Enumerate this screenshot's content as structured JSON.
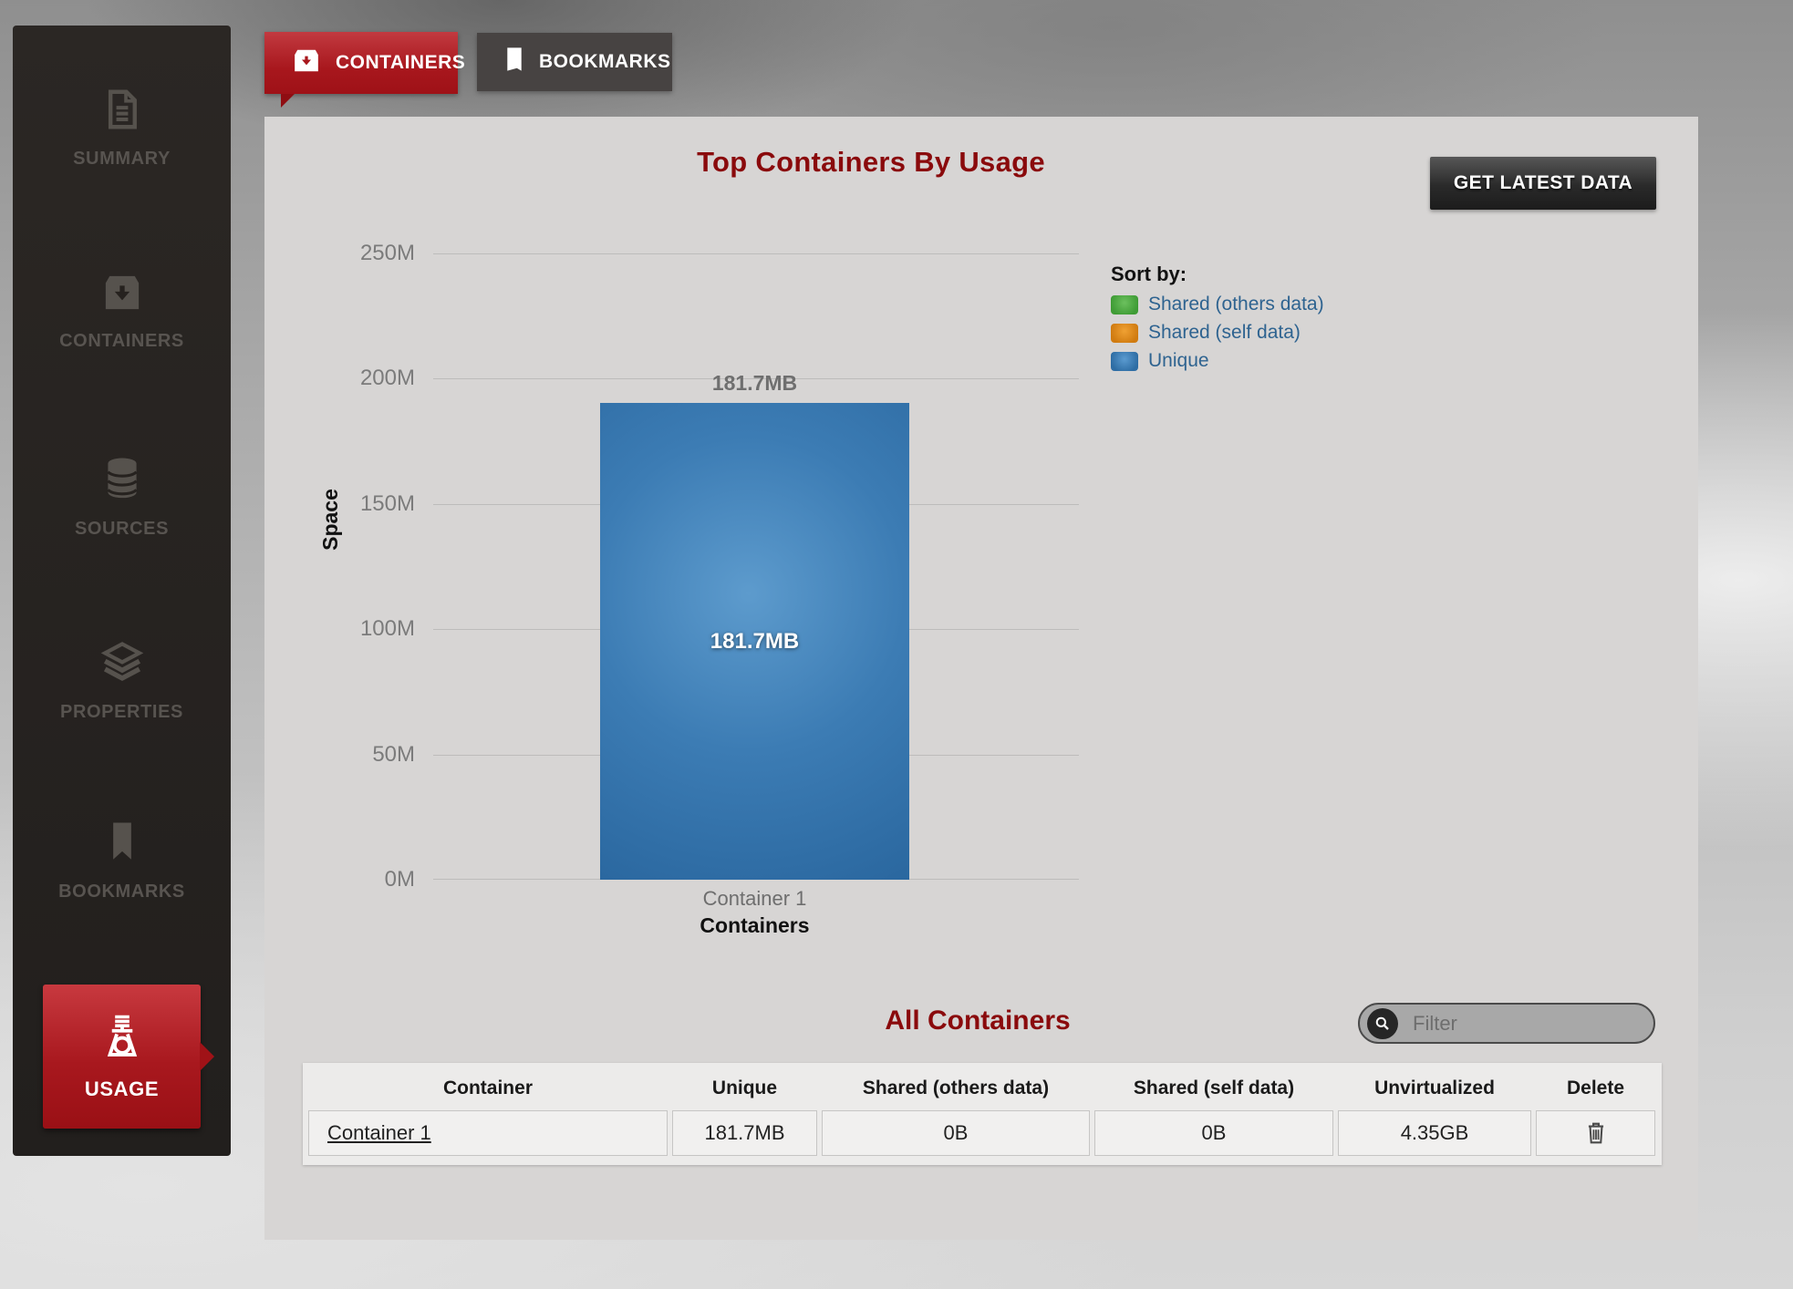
{
  "sidebar": {
    "items": [
      {
        "label": "SUMMARY",
        "icon": "document-icon",
        "active": false
      },
      {
        "label": "CONTAINERS",
        "icon": "archive-icon",
        "active": false
      },
      {
        "label": "SOURCES",
        "icon": "database-icon",
        "active": false
      },
      {
        "label": "PROPERTIES",
        "icon": "layers-icon",
        "active": false
      },
      {
        "label": "BOOKMARKS",
        "icon": "bookmark-icon",
        "active": false
      },
      {
        "label": "USAGE",
        "icon": "scale-icon",
        "active": true
      }
    ]
  },
  "top_tabs": {
    "tabs": [
      {
        "label": "CONTAINERS",
        "icon": "container-box-icon",
        "active": true
      },
      {
        "label": "BOOKMARKS",
        "icon": "bookmark-icon",
        "active": false
      }
    ]
  },
  "panel": {
    "title": "Top Containers By Usage",
    "get_latest_data_button": "GET LATEST DATA"
  },
  "chart_data": {
    "type": "bar",
    "title": "Top Containers By Usage",
    "xlabel": "Containers",
    "ylabel": "Space",
    "categories": [
      "Container 1"
    ],
    "series": [
      {
        "name": "Unique",
        "color": "#3a7ab5",
        "values": [
          181.7
        ],
        "unit": "MB",
        "labels": [
          "181.7MB"
        ]
      },
      {
        "name": "Shared (others data)",
        "color": "#3f9c35",
        "values": [
          0
        ]
      },
      {
        "name": "Shared (self data)",
        "color": "#dd8018",
        "values": [
          0
        ]
      }
    ],
    "bar_value_plotted_m": 190.5,
    "ylim": [
      0,
      250
    ],
    "ytick_labels_top_to_bottom": [
      "250M",
      "200M",
      "150M",
      "100M",
      "50M",
      "0M"
    ],
    "grid": true,
    "legend": {
      "title": "Sort by:",
      "position": "right",
      "entries": [
        {
          "label": "Shared (others data)",
          "color": "#3f9c35"
        },
        {
          "label": "Shared (self data)",
          "color": "#dd8018"
        },
        {
          "label": "Unique",
          "color": "#3a7ab5"
        }
      ]
    }
  },
  "all_containers": {
    "title": "All Containers",
    "filter": {
      "placeholder": "Filter",
      "value": ""
    },
    "table": {
      "columns": [
        "Container",
        "Unique",
        "Shared (others data)",
        "Shared (self data)",
        "Unvirtualized",
        "Delete"
      ],
      "rows": [
        {
          "container": "Container 1",
          "unique": "181.7MB",
          "shared_others": "0B",
          "shared_self": "0B",
          "unvirtualized": "4.35GB",
          "delete_icon": "trash-icon"
        }
      ]
    }
  },
  "colors": {
    "accent_red": "#a8171d",
    "heading_red": "#8a0a0c",
    "bar_blue": "#3a7ab5",
    "legend_green": "#3f9c35",
    "legend_orange": "#dd8018",
    "legend_text_blue": "#2e6390",
    "sidebar_bg": "#262220",
    "panel_bg": "#d7d5d4",
    "dark_button": "#2a2a2a"
  }
}
